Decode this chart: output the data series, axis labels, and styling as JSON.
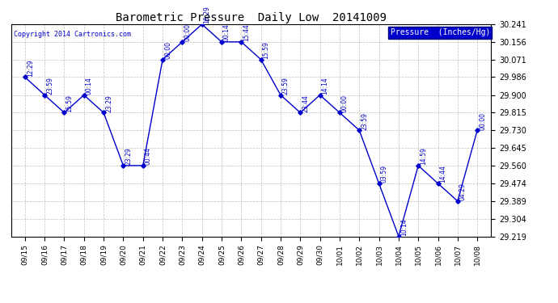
{
  "title": "Barometric Pressure  Daily Low  20141009",
  "copyright": "Copyright 2014 Cartronics.com",
  "legend_label": "Pressure  (Inches/Hg)",
  "line_color": "#0000CC",
  "background_color": "#ffffff",
  "grid_color": "#b0b0b0",
  "ylim_min": 29.219,
  "ylim_max": 30.241,
  "yticks": [
    29.219,
    29.304,
    29.389,
    29.474,
    29.56,
    29.645,
    29.73,
    29.815,
    29.9,
    29.986,
    30.071,
    30.156,
    30.241
  ],
  "dates": [
    "09/15",
    "09/16",
    "09/17",
    "09/18",
    "09/19",
    "09/20",
    "09/21",
    "09/22",
    "09/23",
    "09/24",
    "09/25",
    "09/26",
    "09/27",
    "09/28",
    "09/29",
    "09/30",
    "10/01",
    "10/02",
    "10/03",
    "10/04",
    "10/05",
    "10/06",
    "10/07",
    "10/08"
  ],
  "pressures": [
    29.986,
    29.9,
    29.815,
    29.9,
    29.815,
    29.56,
    29.56,
    30.071,
    30.156,
    30.241,
    30.156,
    30.156,
    30.071,
    29.9,
    29.815,
    29.9,
    29.815,
    29.73,
    29.474,
    29.219,
    29.56,
    29.474,
    29.389,
    29.73
  ],
  "time_labels": [
    "12:29",
    "23:59",
    "15:59",
    "00:14",
    "23:29",
    "23:29",
    "00:44",
    "00:00",
    "00:00",
    "16:29",
    "00:14",
    "15:44",
    "15:59",
    "23:59",
    "23:44",
    "14:14",
    "00:00",
    "23:59",
    "03:59",
    "10:14",
    "14:59",
    "14:44",
    "04:29",
    "00:00"
  ],
  "figwidth": 6.9,
  "figheight": 3.75,
  "dpi": 100
}
